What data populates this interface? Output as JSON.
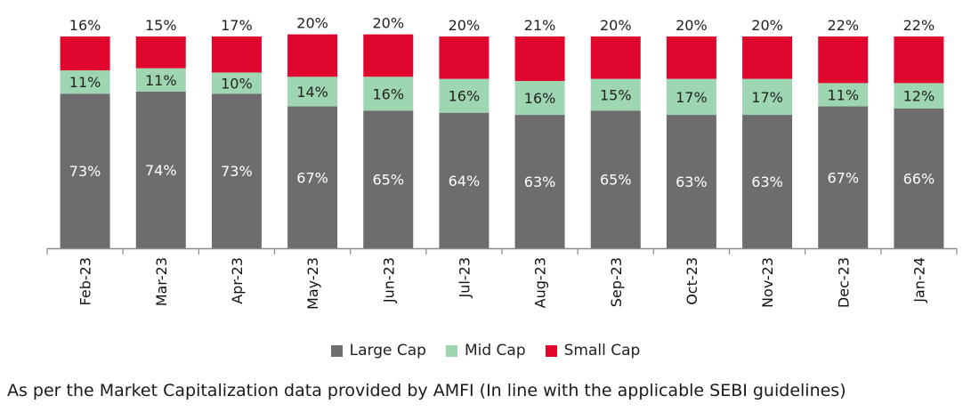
{
  "chart_data": {
    "type": "bar",
    "stacked": true,
    "categories": [
      "Feb-23",
      "Mar-23",
      "Apr-23",
      "May-23",
      "Jun-23",
      "Jul-23",
      "Aug-23",
      "Sep-23",
      "Oct-23",
      "Nov-23",
      "Dec-23",
      "Jan-24"
    ],
    "series": [
      {
        "name": "Large Cap",
        "color": "#6d6d6d",
        "values": [
          73,
          74,
          73,
          67,
          65,
          64,
          63,
          65,
          63,
          63,
          67,
          66
        ]
      },
      {
        "name": "Mid Cap",
        "color": "#9fd6b2",
        "values": [
          11,
          11,
          10,
          14,
          16,
          16,
          16,
          15,
          17,
          17,
          11,
          12
        ]
      },
      {
        "name": "Small Cap",
        "color": "#e0062e",
        "values": [
          16,
          15,
          17,
          20,
          20,
          20,
          21,
          20,
          20,
          20,
          22,
          22
        ]
      }
    ],
    "value_suffix": "%",
    "ylim": [
      0,
      100
    ],
    "grid": false,
    "legend_position": "bottom"
  },
  "footnote": "As per the Market Capitalization data provided by AMFI (In line with the applicable SEBI guidelines)"
}
